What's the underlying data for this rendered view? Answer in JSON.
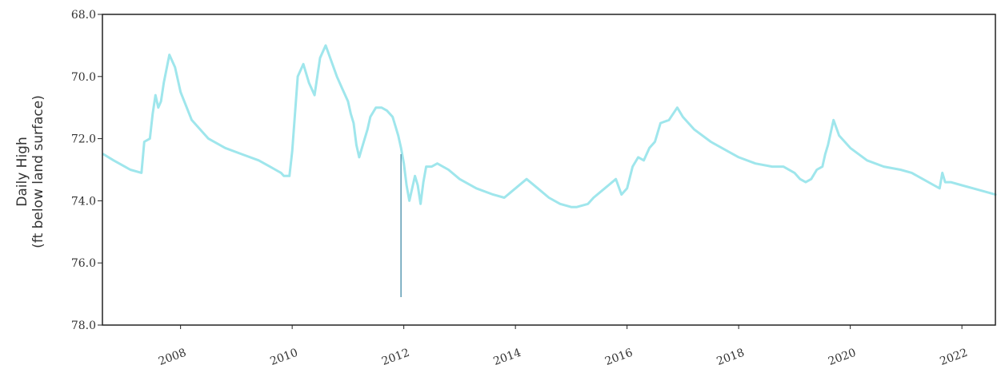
{
  "chart_data": {
    "type": "line",
    "title": "",
    "xlabel": "",
    "ylabel_line1": "Daily High",
    "ylabel_line2": "(ft below land surface)",
    "y_inverted": true,
    "ylim": [
      68.0,
      78.0
    ],
    "y_ticks": [
      "68.0",
      "70.0",
      "72.0",
      "74.0",
      "76.0",
      "78.0"
    ],
    "xlim": [
      2006.6,
      2022.6
    ],
    "x_ticks": [
      "2008",
      "2010",
      "2012",
      "2014",
      "2016",
      "2018",
      "2020",
      "2022"
    ],
    "grid": false,
    "series_color": "#9fe6ec",
    "spike_color": "#5b9bb3",
    "series": [
      {
        "x": [
          2006.62,
          2006.8,
          2007.0,
          2007.1,
          2007.3,
          2007.35,
          2007.45,
          2007.5,
          2007.55,
          2007.6,
          2007.65,
          2007.7,
          2007.8,
          2007.9,
          2008.0,
          2008.2,
          2008.5,
          2008.8,
          2009.1,
          2009.4,
          2009.6,
          2009.7,
          2009.8,
          2009.85,
          2009.95,
          2010.0,
          2010.1,
          2010.2,
          2010.3,
          2010.4,
          2010.5,
          2010.6,
          2010.7,
          2010.8,
          2010.9,
          2010.95,
          2011.0,
          2011.05,
          2011.1,
          2011.15,
          2011.2,
          2011.25,
          2011.3,
          2011.35,
          2011.4,
          2011.5,
          2011.6,
          2011.7,
          2011.8,
          2011.85,
          2011.9,
          2011.95,
          2012.0,
          2012.05,
          2012.1,
          2012.15,
          2012.2,
          2012.25,
          2012.3,
          2012.35,
          2012.4,
          2012.5,
          2012.6,
          2012.8,
          2013.0,
          2013.3,
          2013.6,
          2013.8,
          2014.0,
          2014.2,
          2014.4,
          2014.6,
          2014.8,
          2015.0,
          2015.1,
          2015.3,
          2015.4,
          2015.6,
          2015.8,
          2015.9,
          2016.0,
          2016.1,
          2016.2,
          2016.3,
          2016.4,
          2016.5,
          2016.6,
          2016.75,
          2016.9,
          2017.0,
          2017.2,
          2017.5,
          2017.8,
          2018.0,
          2018.3,
          2018.6,
          2018.8,
          2019.0,
          2019.1,
          2019.2,
          2019.3,
          2019.4,
          2019.5,
          2019.55,
          2019.6,
          2019.7,
          2019.8,
          2020.0,
          2020.3,
          2020.6,
          2020.9,
          2021.1,
          2021.3,
          2021.5,
          2021.6,
          2021.65,
          2021.7,
          2021.8,
          2022.0,
          2022.2,
          2022.4,
          2022.6
        ],
        "y": [
          72.5,
          72.7,
          72.9,
          73.0,
          73.1,
          72.1,
          72.0,
          71.2,
          70.6,
          71.0,
          70.8,
          70.2,
          69.3,
          69.7,
          70.5,
          71.4,
          72.0,
          72.3,
          72.5,
          72.7,
          72.9,
          73.0,
          73.1,
          73.2,
          73.2,
          72.4,
          70.0,
          69.6,
          70.2,
          70.6,
          69.4,
          69.0,
          69.5,
          70.0,
          70.4,
          70.6,
          70.8,
          71.2,
          71.5,
          72.2,
          72.6,
          72.3,
          72.0,
          71.7,
          71.3,
          71.0,
          71.0,
          71.1,
          71.3,
          71.6,
          71.9,
          72.3,
          72.8,
          73.5,
          74.0,
          73.6,
          73.2,
          73.5,
          74.1,
          73.4,
          72.9,
          72.9,
          72.8,
          73.0,
          73.3,
          73.6,
          73.8,
          73.9,
          73.6,
          73.3,
          73.6,
          73.9,
          74.1,
          74.2,
          74.2,
          74.1,
          73.9,
          73.6,
          73.3,
          73.8,
          73.6,
          72.9,
          72.6,
          72.7,
          72.3,
          72.1,
          71.5,
          71.4,
          71.0,
          71.3,
          71.7,
          72.1,
          72.4,
          72.6,
          72.8,
          72.9,
          72.9,
          73.1,
          73.3,
          73.4,
          73.3,
          73.0,
          72.9,
          72.5,
          72.2,
          71.4,
          71.9,
          72.3,
          72.7,
          72.9,
          73.0,
          73.1,
          73.3,
          73.5,
          73.6,
          73.1,
          73.4,
          73.4,
          73.5,
          73.6,
          73.7,
          73.8
        ]
      }
    ],
    "spike": {
      "x": 2011.95,
      "y_from": 72.5,
      "y_to": 77.1
    }
  }
}
